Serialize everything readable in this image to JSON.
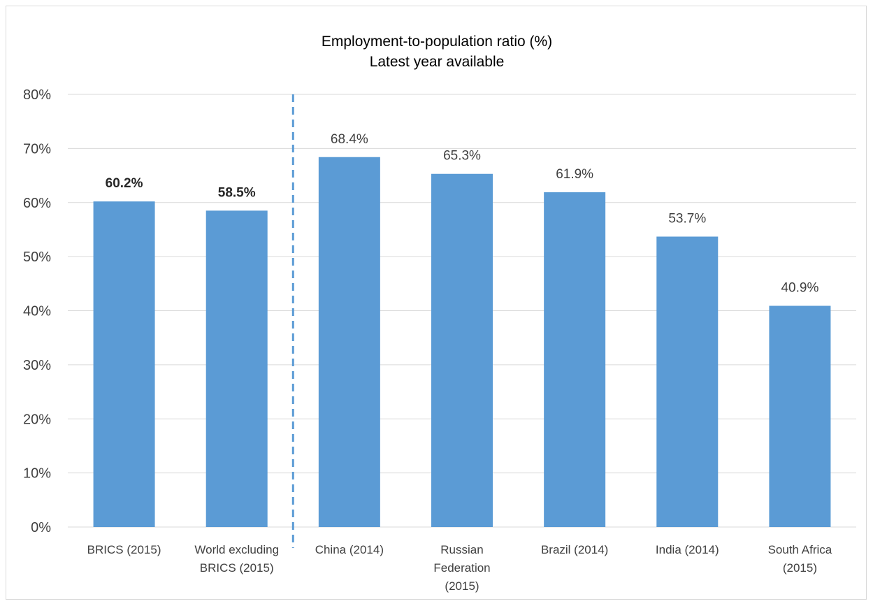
{
  "chart_data": {
    "type": "bar",
    "title": "Employment-to-population ratio (%)",
    "subtitle": "Latest year available",
    "xlabel": "",
    "ylabel": "",
    "ylim": [
      0,
      80
    ],
    "yticks": [
      0,
      10,
      20,
      30,
      40,
      50,
      60,
      70,
      80
    ],
    "ytick_labels": [
      "0%",
      "10%",
      "20%",
      "30%",
      "40%",
      "50%",
      "60%",
      "70%",
      "80%"
    ],
    "grid": true,
    "bar_color": "#5b9bd5",
    "separator_color": "#5b9bd5",
    "categories": [
      [
        "BRICS (2015)"
      ],
      [
        "World excluding",
        "BRICS (2015)"
      ],
      [
        "China (2014)"
      ],
      [
        "Russian",
        "Federation",
        "(2015)"
      ],
      [
        "Brazil (2014)"
      ],
      [
        "India (2014)"
      ],
      [
        "South Africa",
        "(2015)"
      ]
    ],
    "values": [
      60.2,
      58.5,
      68.4,
      65.3,
      61.9,
      53.7,
      40.9
    ],
    "data_labels": [
      "60.2%",
      "58.5%",
      "68.4%",
      "65.3%",
      "61.9%",
      "53.7%",
      "40.9%"
    ],
    "bold_labels": [
      true,
      true,
      false,
      false,
      false,
      false,
      false
    ],
    "separator_after_index": 1
  }
}
